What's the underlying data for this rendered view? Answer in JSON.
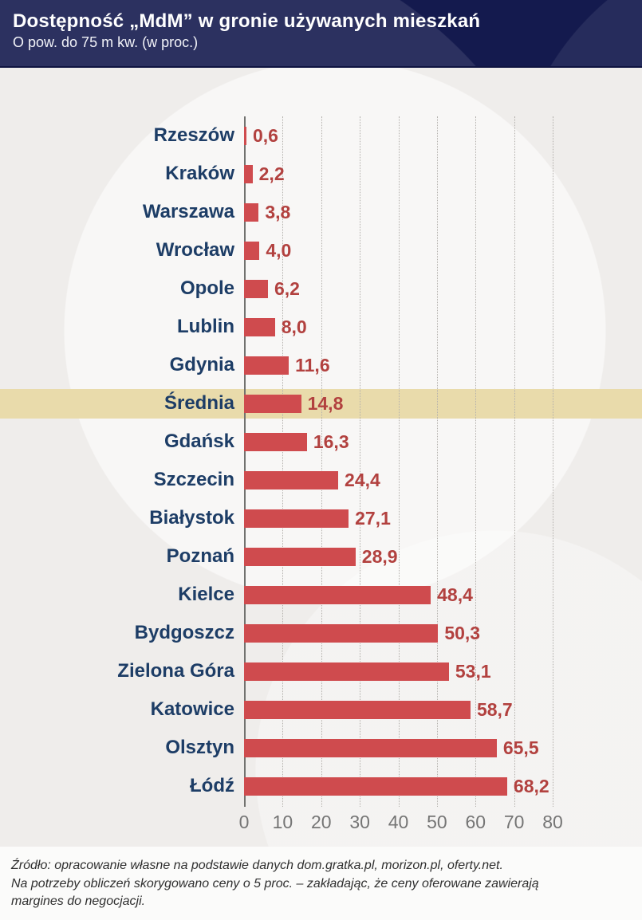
{
  "header": {
    "title": "Dostępność „MdM” w gronie używanych mieszkań",
    "subtitle": "O pow. do 75 m kw. (w proc.)"
  },
  "chart_data": {
    "type": "bar",
    "orientation": "horizontal",
    "title": "Dostępność „MdM” w gronie używanych mieszkań",
    "subtitle": "O pow. do 75 m kw. (w proc.)",
    "unit": "proc.",
    "categories": [
      "Rzeszów",
      "Kraków",
      "Warszawa",
      "Wrocław",
      "Opole",
      "Lublin",
      "Gdynia",
      "Średnia",
      "Gdańsk",
      "Szczecin",
      "Białystok",
      "Poznań",
      "Kielce",
      "Bydgoszcz",
      "Zielona Góra",
      "Katowice",
      "Olsztyn",
      "Łódź"
    ],
    "values": [
      0.6,
      2.2,
      3.8,
      4.0,
      6.2,
      8.0,
      11.6,
      14.8,
      16.3,
      24.4,
      27.1,
      28.9,
      48.4,
      50.3,
      53.1,
      58.7,
      65.5,
      68.2
    ],
    "value_labels": [
      "0,6",
      "2,2",
      "3,8",
      "4,0",
      "6,2",
      "8,0",
      "11,6",
      "14,8",
      "16,3",
      "24,4",
      "27,1",
      "28,9",
      "48,4",
      "50,3",
      "53,1",
      "58,7",
      "65,5",
      "68,2"
    ],
    "highlighted_index": 7,
    "highlighted_category": "Średnia",
    "xlim": [
      0,
      80
    ],
    "x_ticks": [
      0,
      10,
      20,
      30,
      40,
      50,
      60,
      70,
      80
    ],
    "grid": "vertical-dotted",
    "legend": "none",
    "colors": {
      "bar": "#cf4b4e",
      "value_text": "#b2413f",
      "category_text": "#1d3d66",
      "highlight_band": "#e9dbab",
      "axis_text": "#757575",
      "header_bg": "#141a4e",
      "chart_bg": "#efedeb"
    }
  },
  "footer": {
    "lines": [
      "Źródło: opracowanie własne na podstawie danych dom.gratka.pl, morizon.pl, oferty.net.",
      "Na potrzeby obliczeń skorygowano ceny o 5 proc. – zakładając, że ceny oferowane zawierają",
      "margines do negocjacji."
    ]
  }
}
